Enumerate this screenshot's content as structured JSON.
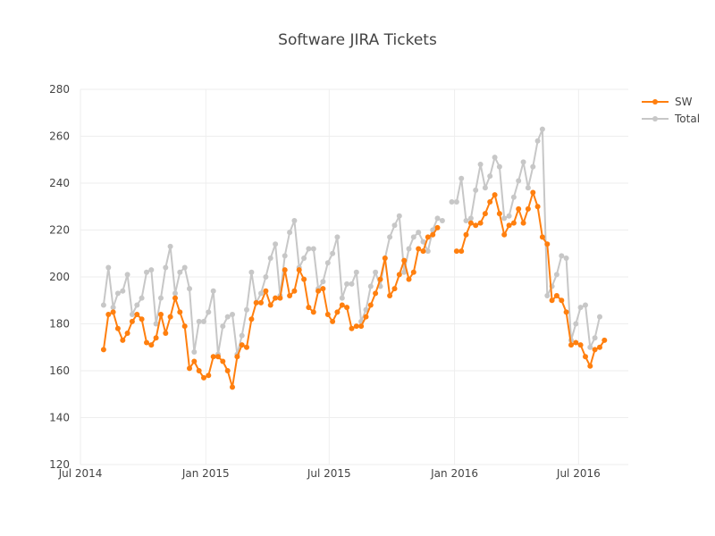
{
  "chart_data": {
    "type": "line",
    "title": "Software JIRA Tickets",
    "xlabel": "",
    "ylabel": "",
    "xlim": [
      "2014-07-01",
      "2016-09-12"
    ],
    "ylim": [
      120,
      280
    ],
    "grid": true,
    "legend_placement": "top-right",
    "x_ticks": [
      {
        "date": "2014-07-01",
        "label": "Jul 2014"
      },
      {
        "date": "2015-01-01",
        "label": "Jan 2015"
      },
      {
        "date": "2015-07-01",
        "label": "Jul 2015"
      },
      {
        "date": "2016-01-01",
        "label": "Jan 2016"
      },
      {
        "date": "2016-07-01",
        "label": "Jul 2016"
      }
    ],
    "y_ticks": [
      120,
      140,
      160,
      180,
      200,
      220,
      240,
      260,
      280
    ],
    "x": [
      "2014-08-04",
      "2014-08-11",
      "2014-08-18",
      "2014-08-25",
      "2014-09-01",
      "2014-09-08",
      "2014-09-15",
      "2014-09-22",
      "2014-09-29",
      "2014-10-06",
      "2014-10-13",
      "2014-10-20",
      "2014-10-27",
      "2014-11-03",
      "2014-11-10",
      "2014-11-17",
      "2014-11-24",
      "2014-12-01",
      "2014-12-08",
      "2014-12-15",
      "2014-12-22",
      "2014-12-29",
      "2015-01-05",
      "2015-01-12",
      "2015-01-19",
      "2015-01-26",
      "2015-02-02",
      "2015-02-09",
      "2015-02-16",
      "2015-02-23",
      "2015-03-02",
      "2015-03-09",
      "2015-03-16",
      "2015-03-23",
      "2015-03-30",
      "2015-04-06",
      "2015-04-13",
      "2015-04-20",
      "2015-04-27",
      "2015-05-04",
      "2015-05-11",
      "2015-05-18",
      "2015-05-25",
      "2015-06-01",
      "2015-06-08",
      "2015-06-15",
      "2015-06-22",
      "2015-06-29",
      "2015-07-06",
      "2015-07-13",
      "2015-07-20",
      "2015-07-27",
      "2015-08-03",
      "2015-08-10",
      "2015-08-17",
      "2015-08-24",
      "2015-08-31",
      "2015-09-07",
      "2015-09-14",
      "2015-09-21",
      "2015-09-28",
      "2015-10-05",
      "2015-10-12",
      "2015-10-19",
      "2015-10-26",
      "2015-11-02",
      "2015-11-09",
      "2015-11-16",
      "2015-11-23",
      "2015-11-30",
      "2015-12-07",
      "2015-12-14",
      "2015-12-21",
      "2015-12-28",
      "2016-01-04",
      "2016-01-11",
      "2016-01-18",
      "2016-01-25",
      "2016-02-01",
      "2016-02-08",
      "2016-02-15",
      "2016-02-22",
      "2016-02-29",
      "2016-03-07",
      "2016-03-14",
      "2016-03-21",
      "2016-03-28",
      "2016-04-04",
      "2016-04-11",
      "2016-04-18",
      "2016-04-25",
      "2016-05-02",
      "2016-05-09",
      "2016-05-16",
      "2016-05-23",
      "2016-05-30",
      "2016-06-06",
      "2016-06-13",
      "2016-06-20",
      "2016-06-27",
      "2016-07-04",
      "2016-07-11",
      "2016-07-18",
      "2016-07-25",
      "2016-08-01",
      "2016-08-08"
    ],
    "series": [
      {
        "name": "SW",
        "color": "#ff7f0e",
        "values": [
          169,
          184,
          185,
          178,
          173,
          176,
          181,
          184,
          182,
          172,
          171,
          174,
          184,
          176,
          183,
          191,
          185,
          179,
          161,
          164,
          160,
          157,
          158,
          166,
          166,
          164,
          160,
          153,
          166,
          171,
          170,
          182,
          189,
          189,
          194,
          188,
          191,
          191,
          203,
          192,
          194,
          203,
          199,
          187,
          185,
          194,
          195,
          184,
          181,
          185,
          188,
          187,
          178,
          179,
          179,
          183,
          188,
          193,
          199,
          208,
          192,
          195,
          201,
          207,
          199,
          202,
          212,
          211,
          217,
          218,
          221,
          null,
          null,
          null,
          211,
          211,
          218,
          223,
          222,
          223,
          227,
          232,
          235,
          227,
          218,
          222,
          223,
          229,
          223,
          229,
          236,
          230,
          217,
          214,
          190,
          192,
          190,
          185,
          171,
          172,
          171,
          166,
          162,
          169,
          170,
          173
        ]
      },
      {
        "name": "Total",
        "color": "#c7c7c7",
        "values": [
          188,
          204,
          187,
          193,
          194,
          201,
          184,
          188,
          191,
          202,
          203,
          180,
          191,
          204,
          213,
          193,
          202,
          204,
          195,
          168,
          181,
          181,
          185,
          194,
          167,
          179,
          183,
          184,
          167,
          175,
          186,
          202,
          189,
          193,
          200,
          208,
          214,
          192,
          209,
          219,
          224,
          204,
          208,
          212,
          212,
          195,
          198,
          206,
          210,
          217,
          191,
          197,
          197,
          202,
          181,
          186,
          196,
          202,
          196,
          208,
          217,
          222,
          226,
          202,
          212,
          217,
          219,
          215,
          211,
          220,
          225,
          224,
          null,
          232,
          232,
          242,
          224,
          225,
          237,
          248,
          238,
          243,
          251,
          247,
          225,
          226,
          234,
          241,
          249,
          238,
          247,
          258,
          263,
          192,
          196,
          201,
          209,
          208,
          173,
          180,
          187,
          188,
          170,
          174,
          183,
          null
        ]
      }
    ]
  }
}
